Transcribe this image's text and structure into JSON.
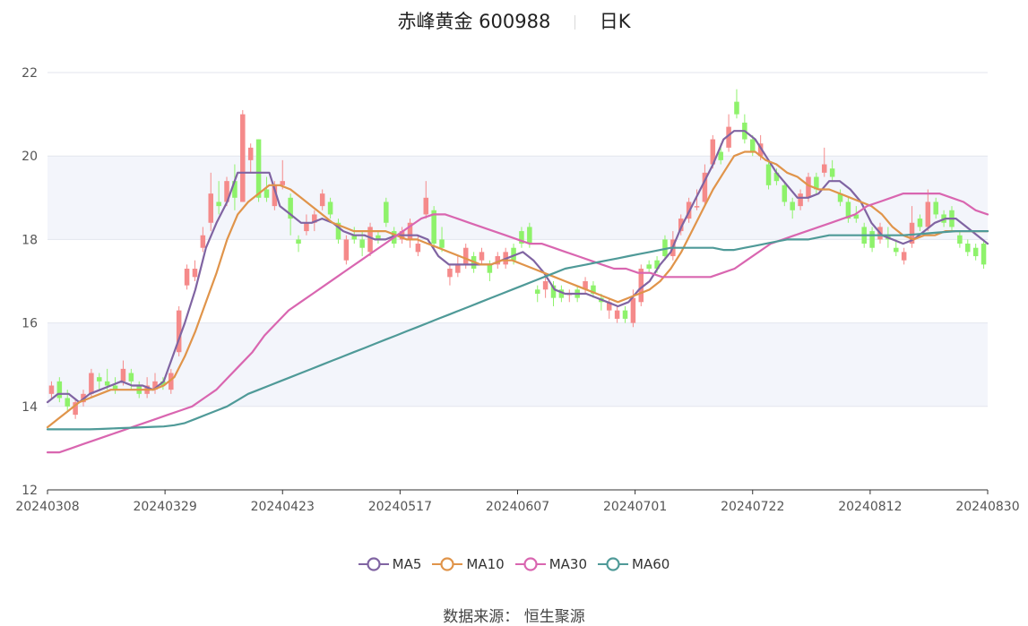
{
  "title": {
    "stock_name": "赤峰黄金",
    "stock_code": "600988",
    "period": "日K"
  },
  "source": {
    "label": "数据来源：",
    "provider": "恒生聚源"
  },
  "colors": {
    "up": "#f58a8a",
    "down": "#8ef26b",
    "MA5": "#8064a2",
    "MA10": "#e0944a",
    "MA30": "#d966b0",
    "MA60": "#4f9a98",
    "grid": "#e3e6ee",
    "band": "#f3f5fb",
    "axis": "#333333"
  },
  "chart_data": {
    "type": "candlestick",
    "x_ticks": [
      "20240308",
      "20240329",
      "20240423",
      "20240517",
      "20240607",
      "20240701",
      "20240722",
      "20240812",
      "20240830"
    ],
    "y_ticks": [
      12,
      14,
      16,
      18,
      20,
      22
    ],
    "ylim": [
      12,
      22
    ],
    "grid": true,
    "legend_position": "bottom",
    "series": [
      {
        "name": "MA5",
        "values": [
          14.1,
          14.3,
          14.3,
          14.1,
          14.3,
          14.4,
          14.5,
          14.6,
          14.5,
          14.5,
          14.4,
          14.6,
          15.3,
          16.0,
          16.8,
          17.8,
          18.4,
          18.9,
          19.6,
          19.6,
          19.6,
          19.6,
          18.8,
          18.6,
          18.4,
          18.4,
          18.5,
          18.4,
          18.2,
          18.1,
          18.1,
          18.0,
          18.0,
          18.1,
          18.1,
          18.1,
          18.0,
          17.6,
          17.4,
          17.4,
          17.4,
          17.4,
          17.4,
          17.5,
          17.6,
          17.7,
          17.5,
          17.2,
          16.8,
          16.7,
          16.7,
          16.7,
          16.6,
          16.5,
          16.4,
          16.5,
          16.8,
          17.0,
          17.4,
          17.7,
          18.3,
          18.8,
          19.3,
          19.8,
          20.4,
          20.6,
          20.6,
          20.4,
          20.0,
          19.6,
          19.3,
          19.0,
          19.0,
          19.1,
          19.4,
          19.4,
          19.2,
          18.9,
          18.4,
          18.1,
          18.0,
          17.9,
          18.0,
          18.2,
          18.4,
          18.5,
          18.5,
          18.3,
          18.1,
          17.9
        ]
      },
      {
        "name": "MA10",
        "values": [
          13.5,
          13.7,
          13.9,
          14.1,
          14.2,
          14.3,
          14.4,
          14.4,
          14.4,
          14.4,
          14.4,
          14.5,
          14.7,
          15.2,
          15.8,
          16.5,
          17.2,
          18.0,
          18.6,
          18.9,
          19.1,
          19.3,
          19.3,
          19.2,
          19.0,
          18.8,
          18.6,
          18.4,
          18.3,
          18.2,
          18.2,
          18.2,
          18.2,
          18.1,
          18.0,
          18.0,
          17.9,
          17.8,
          17.7,
          17.6,
          17.5,
          17.4,
          17.4,
          17.5,
          17.5,
          17.4,
          17.3,
          17.2,
          17.1,
          17.0,
          16.9,
          16.8,
          16.7,
          16.6,
          16.5,
          16.6,
          16.7,
          16.8,
          17.0,
          17.3,
          17.7,
          18.2,
          18.7,
          19.2,
          19.6,
          20.0,
          20.1,
          20.1,
          19.9,
          19.8,
          19.6,
          19.5,
          19.3,
          19.2,
          19.2,
          19.1,
          19.0,
          18.9,
          18.8,
          18.6,
          18.3,
          18.1,
          18.0,
          18.1,
          18.1,
          18.2,
          18.2,
          18.2,
          18.2,
          18.2
        ]
      },
      {
        "name": "MA30",
        "values": [
          12.9,
          12.9,
          13.0,
          13.1,
          13.2,
          13.3,
          13.4,
          13.5,
          13.6,
          13.7,
          13.8,
          13.9,
          14.0,
          14.2,
          14.4,
          14.7,
          15.0,
          15.3,
          15.7,
          16.0,
          16.3,
          16.5,
          16.7,
          16.9,
          17.1,
          17.3,
          17.5,
          17.7,
          17.9,
          18.1,
          18.3,
          18.5,
          18.6,
          18.6,
          18.5,
          18.4,
          18.3,
          18.2,
          18.1,
          18.0,
          17.9,
          17.9,
          17.8,
          17.7,
          17.6,
          17.5,
          17.4,
          17.3,
          17.3,
          17.2,
          17.2,
          17.1,
          17.1,
          17.1,
          17.1,
          17.1,
          17.2,
          17.3,
          17.5,
          17.7,
          17.9,
          18.0,
          18.1,
          18.2,
          18.3,
          18.4,
          18.5,
          18.6,
          18.8,
          18.9,
          19.0,
          19.1,
          19.1,
          19.1,
          19.1,
          19.0,
          18.9,
          18.7,
          18.6
        ]
      },
      {
        "name": "MA60",
        "values": [
          13.45,
          13.45,
          13.45,
          13.45,
          13.45,
          13.46,
          13.47,
          13.48,
          13.49,
          13.5,
          13.51,
          13.52,
          13.55,
          13.6,
          13.7,
          13.8,
          13.9,
          14.0,
          14.15,
          14.3,
          14.4,
          14.5,
          14.6,
          14.7,
          14.8,
          14.9,
          15.0,
          15.1,
          15.2,
          15.3,
          15.4,
          15.5,
          15.6,
          15.7,
          15.8,
          15.9,
          16.0,
          16.1,
          16.2,
          16.3,
          16.4,
          16.5,
          16.6,
          16.7,
          16.8,
          16.9,
          17.0,
          17.1,
          17.2,
          17.3,
          17.35,
          17.4,
          17.45,
          17.5,
          17.55,
          17.6,
          17.65,
          17.7,
          17.75,
          17.8,
          17.8,
          17.8,
          17.8,
          17.8,
          17.75,
          17.75,
          17.8,
          17.85,
          17.9,
          17.95,
          18.0,
          18.0,
          18.0,
          18.05,
          18.1,
          18.1,
          18.1,
          18.1,
          18.1,
          18.1,
          18.1,
          18.1,
          18.12,
          18.14,
          18.16,
          18.18,
          18.2,
          18.2,
          18.2,
          18.2
        ]
      }
    ],
    "candles": [
      [
        14.3,
        14.5,
        14.6,
        14.2
      ],
      [
        14.6,
        14.2,
        14.7,
        14.1
      ],
      [
        14.2,
        14.0,
        14.4,
        13.9
      ],
      [
        13.8,
        14.1,
        14.2,
        13.7
      ],
      [
        14.1,
        14.3,
        14.4,
        14.0
      ],
      [
        14.3,
        14.8,
        14.9,
        14.2
      ],
      [
        14.7,
        14.6,
        14.8,
        14.4
      ],
      [
        14.6,
        14.5,
        14.9,
        14.4
      ],
      [
        14.5,
        14.4,
        14.7,
        14.3
      ],
      [
        14.6,
        14.9,
        15.1,
        14.5
      ],
      [
        14.8,
        14.6,
        14.9,
        14.4
      ],
      [
        14.5,
        14.3,
        14.6,
        14.2
      ],
      [
        14.3,
        14.5,
        14.7,
        14.2
      ],
      [
        14.4,
        14.6,
        14.8,
        14.3
      ],
      [
        14.6,
        14.5,
        14.7,
        14.4
      ],
      [
        14.4,
        14.8,
        14.9,
        14.3
      ],
      [
        15.3,
        16.3,
        16.4,
        15.2
      ],
      [
        16.9,
        17.3,
        17.4,
        16.8
      ],
      [
        17.1,
        17.3,
        17.5,
        17.0
      ],
      [
        17.8,
        18.1,
        18.3,
        17.7
      ],
      [
        18.4,
        19.1,
        19.6,
        18.2
      ],
      [
        18.9,
        18.8,
        19.4,
        18.6
      ],
      [
        18.9,
        19.4,
        19.5,
        18.8
      ],
      [
        19.4,
        19.0,
        19.8,
        18.7
      ],
      [
        18.9,
        21.0,
        21.1,
        18.9
      ],
      [
        19.9,
        20.2,
        20.3,
        19.6
      ],
      [
        20.4,
        19.0,
        20.4,
        18.9
      ],
      [
        19.2,
        19.0,
        19.5,
        18.9
      ],
      [
        18.8,
        19.3,
        19.4,
        18.7
      ],
      [
        19.3,
        19.4,
        19.9,
        19.2
      ],
      [
        19.0,
        18.5,
        19.1,
        18.1
      ],
      [
        18.0,
        17.9,
        18.1,
        17.7
      ],
      [
        18.2,
        18.4,
        18.6,
        18.1
      ],
      [
        18.4,
        18.6,
        18.7,
        18.2
      ],
      [
        18.8,
        19.1,
        19.2,
        18.7
      ],
      [
        18.9,
        18.6,
        19.0,
        18.5
      ],
      [
        18.4,
        18.0,
        18.5,
        17.9
      ],
      [
        17.5,
        18.0,
        18.1,
        17.4
      ],
      [
        18.1,
        18.0,
        18.3,
        17.9
      ],
      [
        18.0,
        17.8,
        18.2,
        17.6
      ],
      [
        17.7,
        18.3,
        18.4,
        17.6
      ],
      [
        18.1,
        18.0,
        18.2,
        17.9
      ],
      [
        18.9,
        18.4,
        19.0,
        18.3
      ],
      [
        18.2,
        17.9,
        18.3,
        17.8
      ],
      [
        18.0,
        18.2,
        18.3,
        17.9
      ],
      [
        18.0,
        18.4,
        18.5,
        17.8
      ],
      [
        17.7,
        17.9,
        18.1,
        17.6
      ],
      [
        18.6,
        19.0,
        19.4,
        18.5
      ],
      [
        18.7,
        17.9,
        18.8,
        17.8
      ],
      [
        18.0,
        17.8,
        18.3,
        17.7
      ],
      [
        17.1,
        17.3,
        17.4,
        16.9
      ],
      [
        17.2,
        17.4,
        17.6,
        17.1
      ],
      [
        17.4,
        17.8,
        17.9,
        17.3
      ],
      [
        17.6,
        17.3,
        17.7,
        17.2
      ],
      [
        17.5,
        17.7,
        17.8,
        17.4
      ],
      [
        17.4,
        17.2,
        17.5,
        17.0
      ],
      [
        17.4,
        17.6,
        17.7,
        17.3
      ],
      [
        17.4,
        17.7,
        17.8,
        17.3
      ],
      [
        17.8,
        17.5,
        17.9,
        17.4
      ],
      [
        18.2,
        17.9,
        18.3,
        17.8
      ],
      [
        18.3,
        17.9,
        18.4,
        17.8
      ],
      [
        16.8,
        16.7,
        16.9,
        16.5
      ],
      [
        16.8,
        17.0,
        17.1,
        16.6
      ],
      [
        16.9,
        16.6,
        17.0,
        16.4
      ],
      [
        16.8,
        16.6,
        16.9,
        16.5
      ],
      [
        16.7,
        16.7,
        16.8,
        16.5
      ],
      [
        16.8,
        16.6,
        16.9,
        16.5
      ],
      [
        16.8,
        17.0,
        17.1,
        16.7
      ],
      [
        16.9,
        16.7,
        17.0,
        16.6
      ],
      [
        16.6,
        16.5,
        16.7,
        16.3
      ],
      [
        16.3,
        16.5,
        16.6,
        16.1
      ],
      [
        16.1,
        16.3,
        16.4,
        16.0
      ],
      [
        16.3,
        16.1,
        16.4,
        16.0
      ],
      [
        16.0,
        16.6,
        16.8,
        15.9
      ],
      [
        16.5,
        17.3,
        17.4,
        16.4
      ],
      [
        17.4,
        17.3,
        17.5,
        17.2
      ],
      [
        17.5,
        17.3,
        17.6,
        17.2
      ],
      [
        18.0,
        17.6,
        18.1,
        17.5
      ],
      [
        17.6,
        18.0,
        18.2,
        17.5
      ],
      [
        18.2,
        18.5,
        18.6,
        18.1
      ],
      [
        18.5,
        18.9,
        19.0,
        18.4
      ],
      [
        18.8,
        18.8,
        19.2,
        18.7
      ],
      [
        18.9,
        19.6,
        19.8,
        18.8
      ],
      [
        19.8,
        20.4,
        20.5,
        19.7
      ],
      [
        20.1,
        19.9,
        20.3,
        19.8
      ],
      [
        20.2,
        20.7,
        21.0,
        20.1
      ],
      [
        21.3,
        21.0,
        21.6,
        20.9
      ],
      [
        20.8,
        20.4,
        21.0,
        20.3
      ],
      [
        20.4,
        20.1,
        20.5,
        20.0
      ],
      [
        20.0,
        20.3,
        20.5,
        19.9
      ],
      [
        19.8,
        19.3,
        19.9,
        19.2
      ],
      [
        19.6,
        19.4,
        19.7,
        19.3
      ],
      [
        19.3,
        18.9,
        19.4,
        18.8
      ],
      [
        18.9,
        18.7,
        19.0,
        18.5
      ],
      [
        18.8,
        19.1,
        19.2,
        18.7
      ],
      [
        19.0,
        19.5,
        19.6,
        18.9
      ],
      [
        19.5,
        19.2,
        19.6,
        19.1
      ],
      [
        19.6,
        19.8,
        20.2,
        19.5
      ],
      [
        19.7,
        19.5,
        19.9,
        19.4
      ],
      [
        19.1,
        18.9,
        19.2,
        18.8
      ],
      [
        18.9,
        18.5,
        19.0,
        18.4
      ],
      [
        18.6,
        18.5,
        18.8,
        18.4
      ],
      [
        18.3,
        17.9,
        18.4,
        17.8
      ],
      [
        18.2,
        17.8,
        18.3,
        17.7
      ],
      [
        18.0,
        18.3,
        18.4,
        17.9
      ],
      [
        18.1,
        18.0,
        18.3,
        17.8
      ],
      [
        17.8,
        17.7,
        18.0,
        17.6
      ],
      [
        17.5,
        17.7,
        17.8,
        17.4
      ],
      [
        17.9,
        18.4,
        18.8,
        17.8
      ],
      [
        18.5,
        18.3,
        18.6,
        18.2
      ],
      [
        18.3,
        18.9,
        19.2,
        18.2
      ],
      [
        18.9,
        18.6,
        19.0,
        18.5
      ],
      [
        18.6,
        18.4,
        18.7,
        18.3
      ],
      [
        18.7,
        18.3,
        18.8,
        18.2
      ],
      [
        18.1,
        17.9,
        18.2,
        17.8
      ],
      [
        17.9,
        17.7,
        18.0,
        17.6
      ],
      [
        17.8,
        17.6,
        17.9,
        17.5
      ],
      [
        17.9,
        17.4,
        18.0,
        17.3
      ]
    ]
  }
}
